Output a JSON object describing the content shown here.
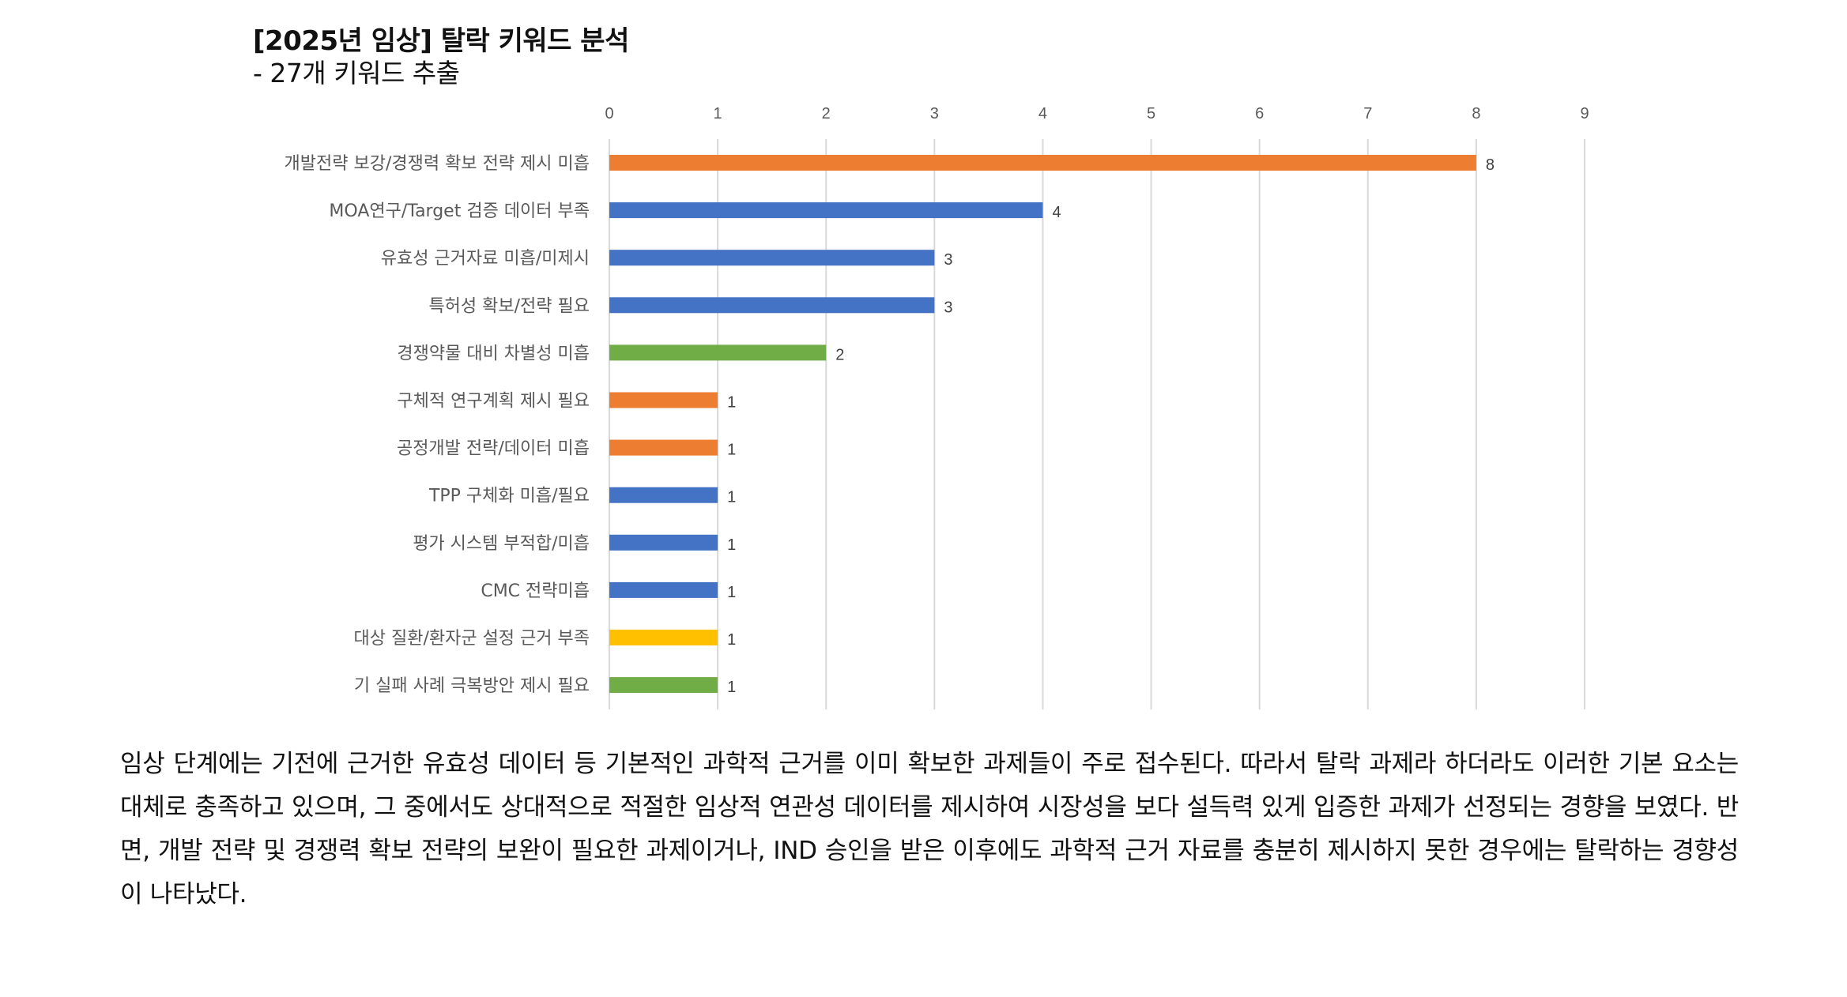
{
  "chart_data": {
    "type": "bar",
    "orientation": "horizontal",
    "title": "[2025년 임상] 탈락 키워드 분석",
    "subtitle": "- 27개 키워드 추출",
    "xlabel": "",
    "ylabel": "",
    "xlim": [
      0,
      9
    ],
    "xticks": [
      "0",
      "1",
      "2",
      "3",
      "4",
      "5",
      "6",
      "7",
      "8",
      "9"
    ],
    "grid": true,
    "categories": [
      "개발전략 보강/경쟁력 확보 전략 제시 미흡",
      "MOA연구/Target 검증 데이터 부족",
      "유효성 근거자료 미흡/미제시",
      "특허성 확보/전략 필요",
      "경쟁약물 대비 차별성 미흡",
      "구체적 연구계획 제시 필요",
      "공정개발 전략/데이터 미흡",
      "TPP 구체화 미흡/필요",
      "평가 시스템 부적합/미흡",
      "CMC 전략미흡",
      "대상 질환/환자군 설정 근거 부족",
      "기 실패 사례 극복방안 제시 필요"
    ],
    "values": [
      8,
      4,
      3,
      3,
      2,
      1,
      1,
      1,
      1,
      1,
      1,
      1
    ],
    "colors": [
      "#ED7D31",
      "#4472C4",
      "#4472C4",
      "#4472C4",
      "#70AD47",
      "#ED7D31",
      "#ED7D31",
      "#4472C4",
      "#4472C4",
      "#4472C4",
      "#FFC000",
      "#70AD47"
    ]
  },
  "paragraph": "임상 단계에는 기전에 근거한 유효성 데이터 등 기본적인 과학적 근거를 이미 확보한 과제들이 주로 접수된다. 따라서 탈락 과제라 하더라도 이러한 기본 요소는 대체로 충족하고 있으며, 그 중에서도 상대적으로 적절한 임상적 연관성 데이터를 제시하여 시장성을 보다 설득력 있게 입증한 과제가 선정되는 경향을 보였다. 반면, 개발 전략 및 경쟁력 확보 전략의 보완이 필요한 과제이거나, IND 승인을 받은 이후에도 과학적 근거 자료를 충분히 제시하지 못한 경우에는 탈락하는 경향성이 나타났다."
}
